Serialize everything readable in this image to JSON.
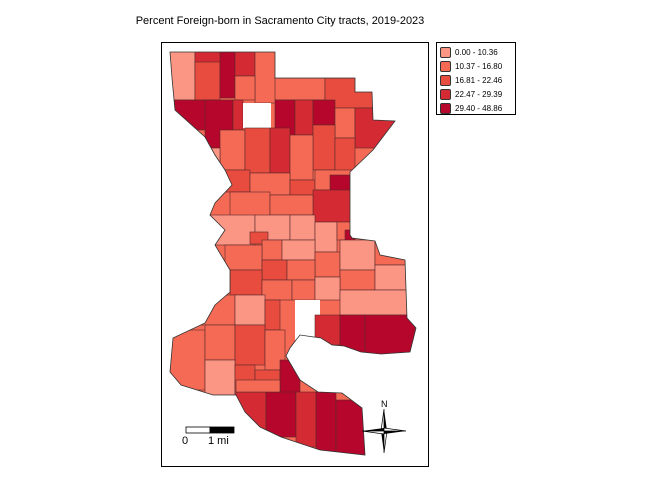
{
  "title": "Percent Foreign-born in Sacramento City tracts, 2019-2023",
  "legend": {
    "classes": [
      {
        "label": "0.00 - 10.36",
        "color": "#fb9584"
      },
      {
        "label": "10.37 - 16.80",
        "color": "#f46a55"
      },
      {
        "label": "16.81 - 22.46",
        "color": "#e84c3f"
      },
      {
        "label": "22.47 - 29.39",
        "color": "#d42a33"
      },
      {
        "label": "29.40 - 48.86",
        "color": "#b7062b"
      }
    ]
  },
  "scale_bar": {
    "start_label": "0",
    "end_label": "1 mi"
  },
  "north_arrow": {
    "label": "N"
  }
}
